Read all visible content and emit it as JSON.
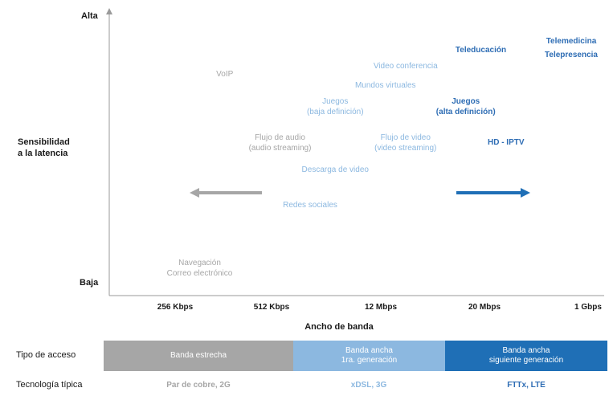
{
  "chart_data": {
    "type": "scatter",
    "ylabel": [
      "Sensibilidad",
      "a la latencia"
    ],
    "y_ticks": {
      "high": "Alta",
      "low": "Baja"
    },
    "xlabel": "Ancho de banda",
    "x_ticks": [
      "256 Kbps",
      "512 Kbps",
      "12 Mbps",
      "20 Mbps",
      "1 Gbps"
    ],
    "grid": false,
    "items": [
      {
        "lines": [
          "Telemedicina"
        ],
        "x": 4.6,
        "y": 9.3,
        "color": "#2e6db4",
        "bold": true
      },
      {
        "lines": [
          "Teleducación"
        ],
        "x": 3.7,
        "y": 9.0,
        "color": "#2e6db4",
        "bold": true
      },
      {
        "lines": [
          "Telepresencia"
        ],
        "x": 4.6,
        "y": 8.8,
        "color": "#2e6db4",
        "bold": true
      },
      {
        "lines": [
          "Video conferencia"
        ],
        "x": 2.95,
        "y": 8.4,
        "color": "#8cb8e0",
        "bold": false
      },
      {
        "lines": [
          "VoIP"
        ],
        "x": 1.15,
        "y": 8.1,
        "color": "#a6a6a6",
        "bold": false
      },
      {
        "lines": [
          "Mundos virtuales"
        ],
        "x": 2.75,
        "y": 7.7,
        "color": "#8cb8e0",
        "bold": false
      },
      {
        "lines": [
          "Juegos",
          "(baja definición)"
        ],
        "x": 2.25,
        "y": 6.9,
        "color": "#8cb8e0",
        "bold": false
      },
      {
        "lines": [
          "Juegos",
          "(alta definición)"
        ],
        "x": 3.55,
        "y": 6.9,
        "color": "#2e6db4",
        "bold": true
      },
      {
        "lines": [
          "Flujo de audio",
          "(audio streaming)"
        ],
        "x": 1.7,
        "y": 5.6,
        "color": "#a6a6a6",
        "bold": false
      },
      {
        "lines": [
          "Flujo de video",
          "(video streaming)"
        ],
        "x": 2.95,
        "y": 5.6,
        "color": "#8cb8e0",
        "bold": false
      },
      {
        "lines": [
          "HD - IPTV"
        ],
        "x": 3.95,
        "y": 5.6,
        "color": "#2e6db4",
        "bold": true
      },
      {
        "lines": [
          "Descarga de video"
        ],
        "x": 2.25,
        "y": 4.6,
        "color": "#8cb8e0",
        "bold": false
      },
      {
        "lines": [
          "Redes sociales"
        ],
        "x": 2.0,
        "y": 3.3,
        "color": "#8cb8e0",
        "bold": false
      },
      {
        "lines": [
          "Navegación",
          "Correo electrónico"
        ],
        "x": 0.9,
        "y": 1.0,
        "color": "#a6a6a6",
        "bold": false
      }
    ],
    "arrows": [
      {
        "direction": "left",
        "color": "#a6a6a6"
      },
      {
        "direction": "right",
        "color": "#1f6fb6"
      }
    ]
  },
  "access_row": {
    "label": "Tipo de acceso",
    "bands": [
      {
        "text": [
          "Banda estrecha"
        ],
        "color": "#a6a6a6"
      },
      {
        "text": [
          "Banda ancha",
          "1ra. generación"
        ],
        "color": "#8cb8e0"
      },
      {
        "text": [
          "Banda ancha",
          "siguiente generación"
        ],
        "color": "#1f6fb6"
      }
    ]
  },
  "tech_row": {
    "label": "Tecnología típica",
    "items": [
      {
        "text": "Par de cobre, 2G",
        "color": "#a6a6a6"
      },
      {
        "text": "xDSL, 3G",
        "color": "#8cb8e0"
      },
      {
        "text": "FTTx, LTE",
        "color": "#2e6db4"
      }
    ]
  }
}
